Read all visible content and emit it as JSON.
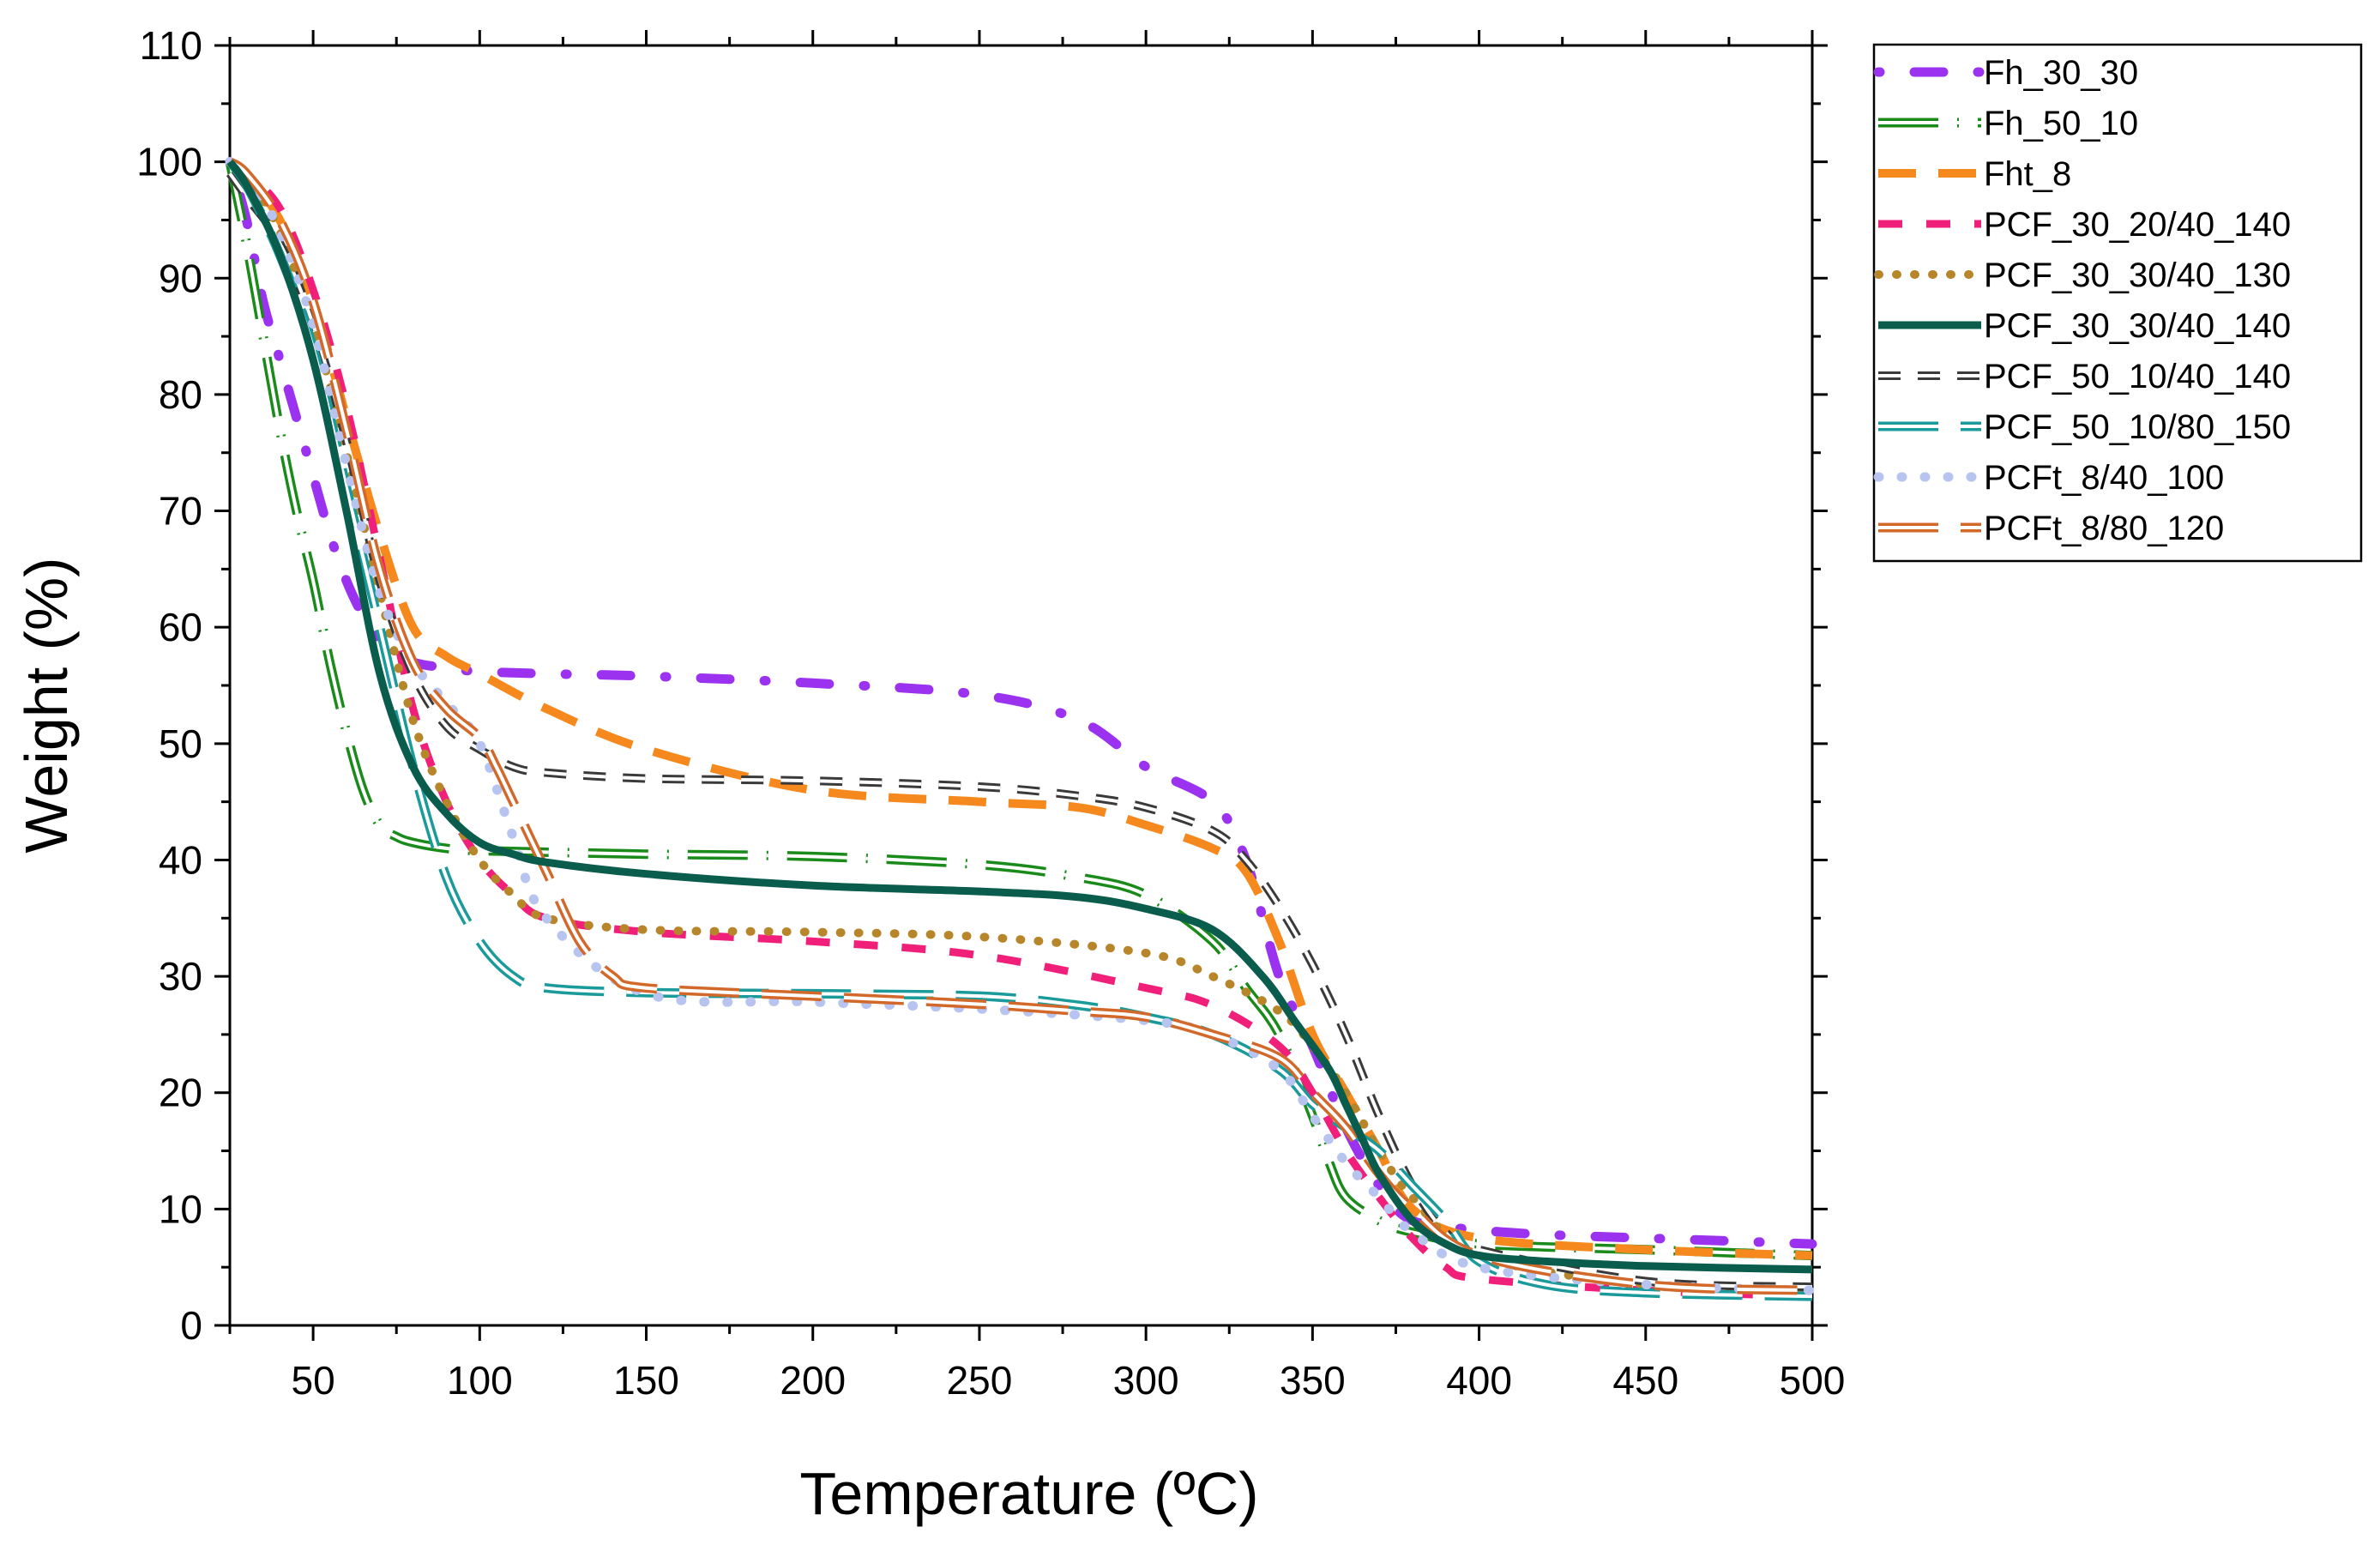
{
  "chart_data": {
    "type": "line",
    "title": "",
    "xlabel": "Temperature (ºC)",
    "ylabel": "Weight (%)",
    "xlim": [
      25,
      500
    ],
    "ylim": [
      0,
      110
    ],
    "xticks": [
      "50",
      "100",
      "150",
      "200",
      "250",
      "300",
      "350",
      "400",
      "450",
      "500"
    ],
    "yticks": [
      "0",
      "10",
      "20",
      "30",
      "40",
      "50",
      "60",
      "70",
      "80",
      "90",
      "100",
      "110"
    ],
    "grid": false,
    "legend_position": "top-right",
    "series": [
      {
        "name": "Fh_30_30",
        "color": "#9a32f0",
        "style": "dot-dash",
        "x": [
          25,
          30,
          35,
          40,
          45,
          50,
          55,
          60,
          65,
          70,
          75,
          80,
          90,
          100,
          120,
          150,
          200,
          250,
          280,
          300,
          320,
          330,
          340,
          350,
          360,
          370,
          380,
          400,
          420,
          450,
          480,
          500
        ],
        "y": [
          100,
          95,
          88,
          83,
          78,
          73,
          68,
          64,
          61,
          59,
          58,
          57,
          56.5,
          56.2,
          56,
          55.8,
          55.2,
          54.2,
          52,
          48,
          45,
          40,
          30,
          24,
          17,
          12,
          9,
          8.2,
          7.8,
          7.5,
          7.2,
          7
        ]
      },
      {
        "name": "Fh_50_10",
        "color": "#1a8a1a",
        "style": "long-dash-dot",
        "x": [
          25,
          30,
          35,
          40,
          45,
          50,
          55,
          60,
          65,
          70,
          75,
          80,
          90,
          100,
          150,
          200,
          250,
          280,
          300,
          320,
          330,
          340,
          350,
          355,
          360,
          370,
          380,
          400,
          450,
          500
        ],
        "y": [
          100,
          93,
          85,
          77,
          70,
          64,
          57,
          51,
          46,
          43,
          42,
          41.5,
          41,
          40.8,
          40.5,
          40.3,
          39.6,
          38.5,
          37,
          33,
          29,
          25,
          18,
          14,
          11,
          9,
          8,
          7,
          6.5,
          6
        ]
      },
      {
        "name": "Fht_8",
        "color": "#f5891e",
        "style": "long-dash",
        "x": [
          25,
          30,
          40,
          50,
          60,
          70,
          80,
          90,
          100,
          120,
          150,
          200,
          250,
          280,
          300,
          320,
          330,
          340,
          350,
          360,
          370,
          380,
          400,
          450,
          500
        ],
        "y": [
          100,
          99,
          95,
          88,
          78,
          68,
          60,
          57.5,
          56,
          53,
          49.5,
          46,
          45,
          44.5,
          43,
          41,
          39,
          33,
          25,
          20,
          15,
          10,
          7.5,
          6.5,
          6
        ]
      },
      {
        "name": "PCF_30_20/40_140",
        "color": "#f0207a",
        "style": "dash",
        "x": [
          25,
          30,
          40,
          50,
          60,
          70,
          80,
          90,
          100,
          110,
          120,
          150,
          200,
          250,
          300,
          320,
          340,
          350,
          360,
          370,
          380,
          390,
          400,
          450,
          500
        ],
        "y": [
          100,
          99,
          96,
          89,
          79,
          66,
          53,
          45,
          40,
          37,
          35,
          33.8,
          33,
          31.8,
          29,
          27.5,
          24,
          20,
          15,
          11,
          7.5,
          5,
          4,
          3,
          2.5
        ]
      },
      {
        "name": "PCF_30_30/40_130",
        "color": "#b8862a",
        "style": "dot",
        "x": [
          25,
          30,
          40,
          50,
          60,
          70,
          80,
          90,
          100,
          110,
          120,
          150,
          200,
          250,
          300,
          320,
          340,
          350,
          360,
          370,
          380,
          400,
          450,
          500
        ],
        "y": [
          100,
          99,
          94,
          86,
          75,
          63,
          52,
          45,
          40,
          37,
          35,
          34,
          33.8,
          33.4,
          32,
          30,
          27,
          24,
          20,
          15,
          11,
          6,
          3.5,
          3
        ]
      },
      {
        "name": "PCF_30_30/40_140",
        "color": "#0a5c4c",
        "style": "solid",
        "x": [
          25,
          30,
          40,
          50,
          60,
          70,
          80,
          90,
          100,
          110,
          120,
          150,
          200,
          250,
          280,
          300,
          320,
          335,
          345,
          355,
          360,
          365,
          370,
          380,
          390,
          400,
          420,
          450,
          500
        ],
        "y": [
          100,
          98,
          92,
          83,
          70,
          56,
          48,
          44,
          41.5,
          40.5,
          39.8,
          38.8,
          37.8,
          37.3,
          36.8,
          35.8,
          34,
          30,
          26,
          22,
          19,
          16,
          13,
          9,
          7,
          6,
          5.5,
          5.1,
          4.8
        ]
      },
      {
        "name": "PCF_50_10/40_140",
        "color": "#3a3a3a",
        "style": "dash-outline",
        "x": [
          25,
          30,
          40,
          50,
          60,
          70,
          80,
          90,
          100,
          110,
          120,
          150,
          200,
          250,
          280,
          300,
          320,
          330,
          340,
          350,
          360,
          370,
          380,
          390,
          400,
          450,
          500
        ],
        "y": [
          99,
          97,
          93,
          86,
          76,
          64,
          56,
          51.5,
          49.5,
          48,
          47.5,
          47,
          46.8,
          46.3,
          45.5,
          44.5,
          42.5,
          40,
          36,
          31,
          25,
          18,
          12,
          8,
          6.5,
          3.8,
          3.3
        ]
      },
      {
        "name": "PCF_50_10/80_150",
        "color": "#1a9a9a",
        "style": "long-dash-outline",
        "x": [
          25,
          30,
          40,
          50,
          60,
          70,
          80,
          90,
          100,
          110,
          120,
          150,
          200,
          250,
          280,
          300,
          320,
          340,
          350,
          360,
          370,
          380,
          390,
          400,
          420,
          450,
          500
        ],
        "y": [
          100,
          98,
          92,
          84,
          72,
          60,
          48,
          38.5,
          33,
          30,
          29,
          28.6,
          28.5,
          28.3,
          27.5,
          26.5,
          25,
          22,
          19,
          17,
          15,
          12,
          9,
          5.5,
          3.5,
          2.8,
          2.5
        ]
      },
      {
        "name": "PCFt_8/40_100",
        "color": "#b8c4f0",
        "style": "dot-light",
        "x": [
          25,
          30,
          40,
          50,
          60,
          70,
          80,
          90,
          100,
          110,
          120,
          150,
          200,
          250,
          300,
          320,
          340,
          350,
          360,
          370,
          380,
          400,
          450,
          500
        ],
        "y": [
          100,
          99,
          94,
          86,
          74,
          63,
          57,
          53.5,
          50,
          42,
          35,
          28.5,
          27.8,
          27.2,
          26.2,
          25,
          22,
          18,
          14,
          11,
          8,
          5,
          3.5,
          3
        ]
      },
      {
        "name": "PCFt_8/80_120",
        "color": "#d2692a",
        "style": "long-dash-outline",
        "x": [
          25,
          30,
          40,
          50,
          60,
          70,
          80,
          90,
          100,
          105,
          110,
          120,
          130,
          140,
          150,
          200,
          250,
          280,
          300,
          320,
          340,
          350,
          360,
          370,
          380,
          400,
          450,
          500
        ],
        "y": [
          100,
          99,
          95,
          88,
          77,
          65,
          57,
          53,
          50.5,
          48,
          45,
          39,
          33,
          30,
          29,
          28.3,
          27.6,
          27,
          26.5,
          25,
          23,
          20,
          17,
          13,
          10,
          6,
          3.5,
          3
        ]
      }
    ]
  }
}
